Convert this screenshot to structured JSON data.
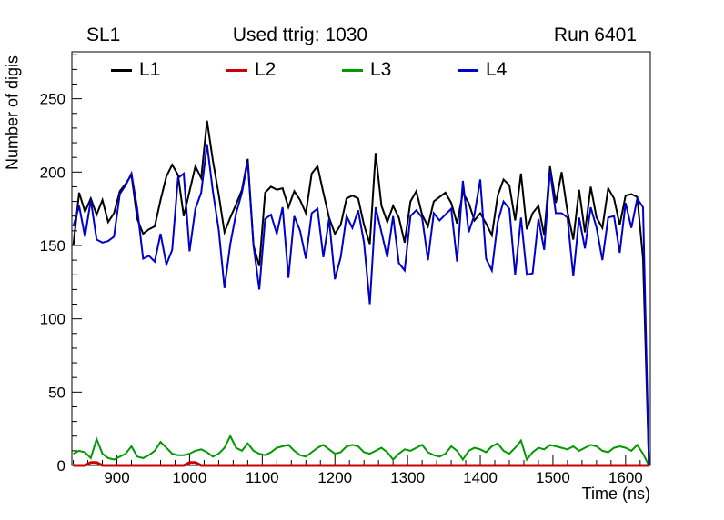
{
  "header": {
    "left_title": "SL1",
    "center_title": "Used ttrig: 1030",
    "right_title": "Run 6401"
  },
  "axes": {
    "y_label": "Number of digis",
    "x_label": "Time (ns)"
  },
  "legend": {
    "entries": [
      {
        "label": "L1",
        "color": "#000000"
      },
      {
        "label": "L2",
        "color": "#cc0000"
      },
      {
        "label": "L3",
        "color": "#009900"
      },
      {
        "label": "L4",
        "color": "#0000cc"
      }
    ]
  },
  "chart_data": {
    "type": "line",
    "title": "SL1",
    "subtitle": "Used ttrig: 1030",
    "annotation": "Run 6401",
    "xlabel": "Time (ns)",
    "ylabel": "Number of digis",
    "xlim": [
      838,
      1634
    ],
    "ylim": [
      0,
      282
    ],
    "xticks": [
      900,
      1000,
      1100,
      1200,
      1300,
      1400,
      1500,
      1600
    ],
    "x_minor_step": 20,
    "yticks": [
      0,
      50,
      100,
      150,
      200,
      250
    ],
    "y_minor_step": 10,
    "grid": false,
    "legend_position": "top-inside",
    "x_start": 840,
    "x_step": 8,
    "series": [
      {
        "name": "L1",
        "color": "#000000",
        "width": 2,
        "values": [
          150,
          186,
          173,
          182,
          171,
          181,
          166,
          172,
          187,
          192,
          198,
          168,
          158,
          161,
          163,
          181,
          197,
          205,
          198,
          170,
          187,
          204,
          196,
          235,
          208,
          185,
          159,
          169,
          178,
          188,
          209,
          150,
          136,
          186,
          190,
          188,
          189,
          176,
          187,
          181,
          172,
          199,
          204,
          186,
          169,
          158,
          164,
          182,
          184,
          182,
          164,
          151,
          213,
          177,
          166,
          177,
          169,
          152,
          180,
          187,
          171,
          163,
          180,
          183,
          186,
          179,
          165,
          186,
          179,
          167,
          172,
          165,
          157,
          184,
          195,
          191,
          167,
          199,
          161,
          172,
          177,
          157,
          204,
          179,
          200,
          173,
          154,
          188,
          159,
          190,
          169,
          162,
          189,
          182,
          164,
          184,
          185,
          183,
          141,
          2
        ]
      },
      {
        "name": "L2",
        "color": "#cc0000",
        "width": 3,
        "values": [
          0,
          0,
          0,
          2,
          2,
          0,
          0,
          0,
          0,
          0,
          0,
          0,
          0,
          0,
          0,
          0,
          0,
          0,
          0,
          0,
          2,
          2,
          0,
          0,
          0,
          0,
          0,
          0,
          0,
          0,
          0,
          0,
          0,
          0,
          0,
          0,
          0,
          0,
          0,
          0,
          0,
          0,
          0,
          0,
          0,
          0,
          0,
          0,
          0,
          0,
          0,
          0,
          0,
          0,
          0,
          0,
          0,
          0,
          0,
          0,
          0,
          0,
          0,
          0,
          0,
          0,
          0,
          0,
          0,
          0,
          0,
          0,
          0,
          0,
          0,
          0,
          0,
          0,
          0,
          0,
          0,
          0,
          0,
          0,
          0,
          0,
          0,
          0,
          0,
          0,
          0,
          0,
          0,
          0,
          0,
          0,
          0,
          0,
          0,
          0
        ]
      },
      {
        "name": "L3",
        "color": "#009900",
        "width": 2,
        "values": [
          8,
          10,
          9,
          5,
          18,
          8,
          5,
          4,
          6,
          8,
          13,
          6,
          5,
          7,
          10,
          16,
          12,
          8,
          7,
          7,
          8,
          10,
          11,
          9,
          6,
          8,
          12,
          20,
          12,
          10,
          15,
          10,
          8,
          7,
          9,
          12,
          13,
          14,
          10,
          7,
          6,
          9,
          12,
          14,
          11,
          8,
          9,
          13,
          14,
          13,
          9,
          8,
          10,
          12,
          9,
          4,
          8,
          11,
          10,
          12,
          14,
          9,
          7,
          6,
          8,
          13,
          10,
          4,
          10,
          12,
          11,
          9,
          13,
          15,
          10,
          8,
          12,
          17,
          4,
          9,
          12,
          11,
          14,
          13,
          12,
          11,
          13,
          10,
          12,
          14,
          13,
          10,
          9,
          12,
          13,
          12,
          10,
          14,
          8,
          0
        ]
      },
      {
        "name": "L4",
        "color": "#0000cc",
        "width": 2,
        "values": [
          163,
          177,
          156,
          181,
          154,
          152,
          153,
          156,
          185,
          191,
          199,
          175,
          141,
          143,
          139,
          158,
          137,
          147,
          196,
          199,
          146,
          175,
          186,
          219,
          187,
          161,
          121,
          151,
          172,
          186,
          207,
          150,
          120,
          168,
          171,
          158,
          176,
          128,
          170,
          160,
          141,
          172,
          175,
          142,
          168,
          127,
          142,
          170,
          162,
          174,
          152,
          110,
          176,
          159,
          142,
          170,
          138,
          133,
          170,
          174,
          169,
          140,
          172,
          167,
          171,
          175,
          139,
          194,
          159,
          171,
          195,
          141,
          133,
          166,
          180,
          175,
          130,
          169,
          130,
          131,
          168,
          147,
          201,
          172,
          172,
          169,
          129,
          169,
          148,
          176,
          162,
          140,
          169,
          170,
          145,
          179,
          162,
          182,
          176,
          0
        ]
      }
    ]
  }
}
